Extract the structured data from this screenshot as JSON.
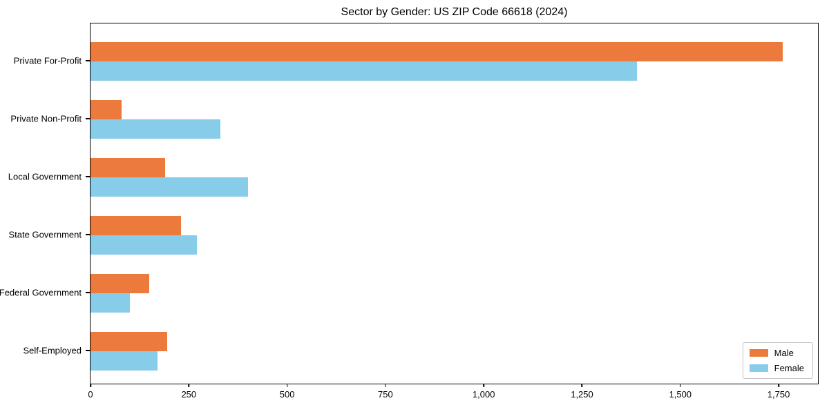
{
  "title": "Sector by Gender: US ZIP Code 66618 (2024)",
  "colors": {
    "male": "#EB7A3C",
    "female": "#87CCE8",
    "axis": "#000000",
    "legend_border": "#c4c4c4",
    "background": "#ffffff"
  },
  "legend": {
    "position": "lower right",
    "items": [
      {
        "label": "Male",
        "color": "#EB7A3C"
      },
      {
        "label": "Female",
        "color": "#87CCE8"
      }
    ]
  },
  "chart_data": {
    "type": "bar",
    "orientation": "horizontal",
    "title": "Sector by Gender: US ZIP Code 66618 (2024)",
    "xlabel": "",
    "ylabel": "",
    "grid": false,
    "legend_position": "lower right",
    "categories": [
      "Private For-Profit",
      "Private Non-Profit",
      "Local Government",
      "State Government",
      "Federal Government",
      "Self-Employed"
    ],
    "series": [
      {
        "name": "Male",
        "color": "#EB7A3C",
        "values": [
          1760,
          80,
          190,
          230,
          150,
          195
        ]
      },
      {
        "name": "Female",
        "color": "#87CCE8",
        "values": [
          1390,
          330,
          400,
          270,
          100,
          170
        ]
      }
    ],
    "xlim": [
      0,
      1850
    ],
    "xticks": [
      0,
      250,
      500,
      750,
      1000,
      1250,
      1500,
      1750
    ],
    "xtick_labels": [
      "0",
      "250",
      "500",
      "750",
      "1,000",
      "1,250",
      "1,500",
      "1,750"
    ]
  }
}
